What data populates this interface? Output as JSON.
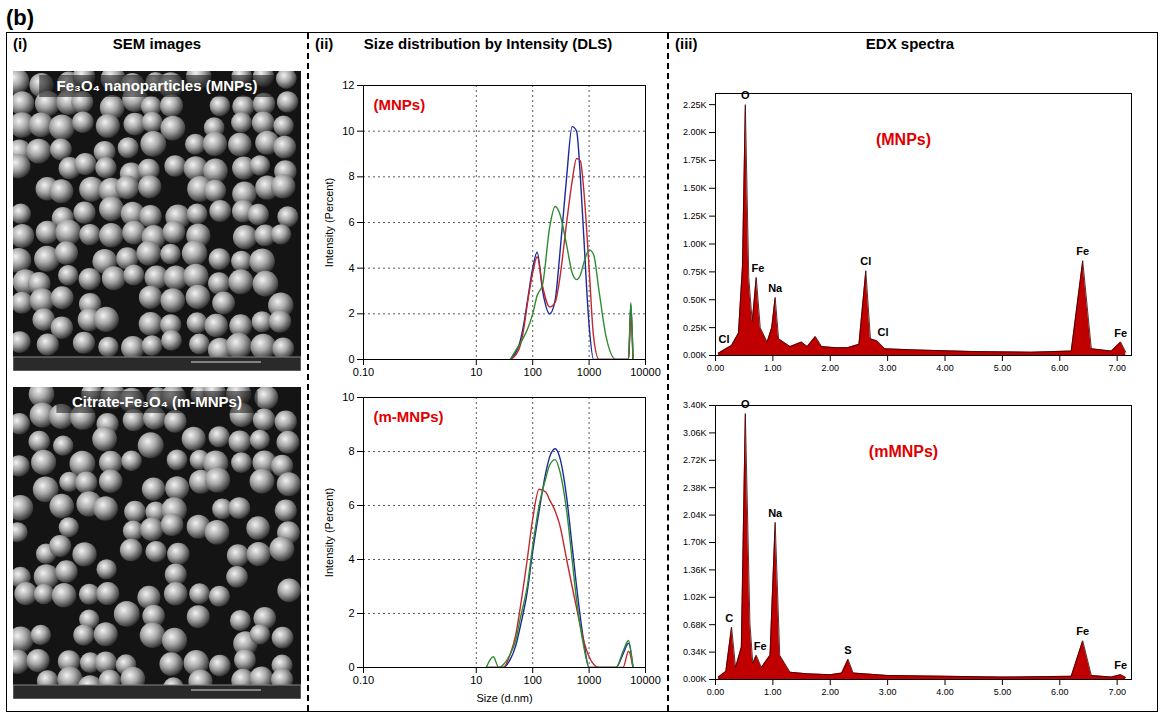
{
  "figure": {
    "panel_label": "(b)",
    "columns": [
      {
        "label": "(i)",
        "title": "SEM images"
      },
      {
        "label": "(ii)",
        "title": "Size distribution by Intensity (DLS)"
      },
      {
        "label": "(iii)",
        "title": "EDX spectra"
      }
    ]
  },
  "images": [
    {
      "caption": "Fe₃O₄ nanoparticles (MNPs)"
    },
    {
      "caption": "Citrate-Fe₃O₄ (m-MNPs)"
    }
  ],
  "chart_data": [
    {
      "type": "line",
      "title": "(MNPs)",
      "y_label": "Intensity (Percent)",
      "log": "x",
      "grid": true,
      "xlim": [
        0.1,
        10000
      ],
      "xticks": [
        {
          "value": 0.1,
          "label": "0.10"
        },
        10,
        100,
        1000,
        10000
      ],
      "ylim": [
        0,
        12
      ],
      "yticks": [
        0,
        2,
        4,
        6,
        8,
        10,
        12
      ],
      "x": [
        40,
        50,
        60,
        70,
        80,
        100,
        120,
        150,
        200,
        250,
        300,
        400,
        500,
        600,
        700,
        800,
        1000,
        1200,
        1500,
        2000,
        3000,
        4000,
        5000,
        5500,
        6000
      ],
      "series": [
        {
          "color": "#1a2a9c",
          "values": [
            0,
            0.3,
            0.8,
            1.6,
            2.5,
            4.0,
            4.7,
            3.0,
            2.0,
            2.6,
            4.5,
            8.0,
            10.2,
            10.0,
            8.0,
            5.5,
            1.5,
            0,
            0,
            0,
            0,
            0,
            0,
            2.4,
            0
          ]
        },
        {
          "color": "#c0282d",
          "values": [
            0,
            0.2,
            0.6,
            1.4,
            2.4,
            3.8,
            4.5,
            3.2,
            2.3,
            2.5,
            3.5,
            6.0,
            7.8,
            8.8,
            8.7,
            7.5,
            4.0,
            1.0,
            0,
            0,
            0,
            0,
            0,
            1.9,
            0
          ]
        },
        {
          "color": "#2e8b2e",
          "values": [
            0,
            0.4,
            0.7,
            1.0,
            1.3,
            2.0,
            2.8,
            3.3,
            5.8,
            6.7,
            6.4,
            5.0,
            3.8,
            3.5,
            3.7,
            4.2,
            4.8,
            4.6,
            3.0,
            1.0,
            0,
            0,
            0,
            2.5,
            0
          ]
        }
      ]
    },
    {
      "type": "line",
      "title": "(m-MNPs)",
      "x_label": "Size (d.nm)",
      "y_label": "Intensity (Percent)",
      "log": "x",
      "grid": true,
      "xlim": [
        0.1,
        10000
      ],
      "xticks": [
        {
          "value": 0.1,
          "label": "0.10"
        },
        10,
        100,
        1000,
        10000
      ],
      "ylim": [
        0,
        10
      ],
      "yticks": [
        0,
        2,
        4,
        6,
        8,
        10
      ],
      "x": [
        15,
        20,
        25,
        30,
        40,
        50,
        60,
        80,
        100,
        130,
        170,
        200,
        250,
        300,
        400,
        500,
        600,
        800,
        1000,
        1500,
        2000,
        3000,
        4000,
        5000,
        6000
      ],
      "series": [
        {
          "color": "#1a2a9c",
          "values": [
            0,
            0,
            0,
            0,
            0.3,
            0.8,
            1.5,
            2.8,
            4.3,
            5.8,
            7.2,
            7.8,
            8.1,
            7.8,
            6.3,
            4.5,
            3.0,
            1.0,
            0,
            0,
            0,
            0,
            0.5,
            0.9,
            0
          ]
        },
        {
          "color": "#c0282d",
          "values": [
            0,
            0,
            0,
            0,
            0.5,
            1.2,
            2.2,
            4.0,
            5.5,
            6.6,
            6.5,
            6.2,
            5.8,
            5.3,
            4.0,
            3.0,
            2.2,
            1.0,
            0.4,
            0,
            0,
            0,
            0,
            0.6,
            0
          ]
        },
        {
          "color": "#2e8b2e",
          "values": [
            0,
            0.4,
            0,
            0.1,
            0.5,
            1.0,
            1.8,
            3.0,
            4.5,
            6.0,
            7.0,
            7.5,
            7.7,
            7.3,
            5.8,
            4.0,
            2.5,
            0.8,
            0,
            0,
            0,
            0,
            0.6,
            1.0,
            0
          ]
        }
      ]
    },
    {
      "type": "area",
      "title": "(MNPs)",
      "color": "#c00000",
      "grid": false,
      "xlim": [
        0,
        7.25
      ],
      "xticks": [
        {
          "value": 0,
          "label": "0.00"
        },
        {
          "value": 1,
          "label": "1.00"
        },
        {
          "value": 2,
          "label": "2.00"
        },
        {
          "value": 3,
          "label": "3.00"
        },
        {
          "value": 4,
          "label": "4.00"
        },
        {
          "value": 5,
          "label": "5.00"
        },
        {
          "value": 6,
          "label": "6.00"
        },
        {
          "value": 7,
          "label": "7.00"
        }
      ],
      "ylim": [
        0,
        2350
      ],
      "yticks": [
        {
          "value": 0,
          "label": "0.00K"
        },
        {
          "value": 250,
          "label": "0.25K"
        },
        {
          "value": 500,
          "label": "0.50K"
        },
        {
          "value": 750,
          "label": "0.75K"
        },
        {
          "value": 1000,
          "label": "1.00K"
        },
        {
          "value": 1250,
          "label": "1.25K"
        },
        {
          "value": 1500,
          "label": "1.50K"
        },
        {
          "value": 1750,
          "label": "1.75K"
        },
        {
          "value": 2000,
          "label": "2.00K"
        },
        {
          "value": 2250,
          "label": "2.25K"
        }
      ],
      "x": [
        0.05,
        0.18,
        0.28,
        0.4,
        0.47,
        0.52,
        0.58,
        0.64,
        0.71,
        0.78,
        0.9,
        0.98,
        1.04,
        1.1,
        1.3,
        1.5,
        1.6,
        1.74,
        1.85,
        2.1,
        2.3,
        2.5,
        2.62,
        2.7,
        2.82,
        2.95,
        3.5,
        4.5,
        5.5,
        6.2,
        6.4,
        6.55,
        6.9,
        7.06,
        7.15
      ],
      "values": [
        20,
        60,
        90,
        200,
        800,
        2250,
        700,
        300,
        700,
        250,
        120,
        250,
        520,
        150,
        80,
        120,
        80,
        170,
        80,
        70,
        70,
        100,
        760,
        150,
        130,
        60,
        50,
        35,
        30,
        40,
        850,
        60,
        40,
        120,
        30
      ],
      "annotations": [
        {
          "text": "Cl",
          "x": 0.15,
          "y": 60
        },
        {
          "text": "O",
          "x": 0.52,
          "y": 2250
        },
        {
          "text": "Fe",
          "x": 0.74,
          "y": 700
        },
        {
          "text": "Na",
          "x": 1.04,
          "y": 520
        },
        {
          "text": "Cl",
          "x": 2.62,
          "y": 760
        },
        {
          "text": "Cl",
          "x": 2.92,
          "y": 130
        },
        {
          "text": "Fe",
          "x": 6.4,
          "y": 850
        },
        {
          "text": "Fe",
          "x": 7.06,
          "y": 120
        }
      ]
    },
    {
      "type": "area",
      "title": "(mMNPs)",
      "color": "#c00000",
      "grid": false,
      "xlim": [
        0,
        7.25
      ],
      "xticks": [
        {
          "value": 0,
          "label": "0.00"
        },
        {
          "value": 1,
          "label": "1.00"
        },
        {
          "value": 2,
          "label": "2.00"
        },
        {
          "value": 3,
          "label": "3.00"
        },
        {
          "value": 4,
          "label": "4.00"
        },
        {
          "value": 5,
          "label": "5.00"
        },
        {
          "value": 6,
          "label": "6.00"
        },
        {
          "value": 7,
          "label": "7.00"
        }
      ],
      "ylim": [
        0,
        3400
      ],
      "yticks": [
        {
          "value": 0,
          "label": "0.00K"
        },
        {
          "value": 340,
          "label": "0.34K"
        },
        {
          "value": 680,
          "label": "0.68K"
        },
        {
          "value": 1020,
          "label": "1.02K"
        },
        {
          "value": 1360,
          "label": "1.36K"
        },
        {
          "value": 1700,
          "label": "1.70K"
        },
        {
          "value": 2040,
          "label": "2.04K"
        },
        {
          "value": 2380,
          "label": "2.38K"
        },
        {
          "value": 2720,
          "label": "2.72K"
        },
        {
          "value": 3060,
          "label": "3.06K"
        },
        {
          "value": 3400,
          "label": "3.40K"
        }
      ],
      "x": [
        0.05,
        0.18,
        0.28,
        0.35,
        0.45,
        0.52,
        0.6,
        0.65,
        0.71,
        0.8,
        0.95,
        1.04,
        1.12,
        1.3,
        1.6,
        2.0,
        2.2,
        2.31,
        2.4,
        3.0,
        4.0,
        5.0,
        6.2,
        6.4,
        6.55,
        6.9,
        7.06,
        7.15
      ],
      "values": [
        30,
        100,
        650,
        150,
        400,
        3300,
        700,
        200,
        300,
        150,
        300,
        1950,
        300,
        90,
        70,
        60,
        80,
        250,
        80,
        50,
        40,
        30,
        40,
        480,
        50,
        30,
        60,
        25
      ],
      "annotations": [
        {
          "text": "C",
          "x": 0.24,
          "y": 650
        },
        {
          "text": "O",
          "x": 0.52,
          "y": 3300
        },
        {
          "text": "Fe",
          "x": 0.78,
          "y": 300
        },
        {
          "text": "Na",
          "x": 1.04,
          "y": 1950
        },
        {
          "text": "S",
          "x": 2.31,
          "y": 250
        },
        {
          "text": "Fe",
          "x": 6.4,
          "y": 480
        },
        {
          "text": "Fe",
          "x": 7.06,
          "y": 60
        }
      ]
    }
  ]
}
